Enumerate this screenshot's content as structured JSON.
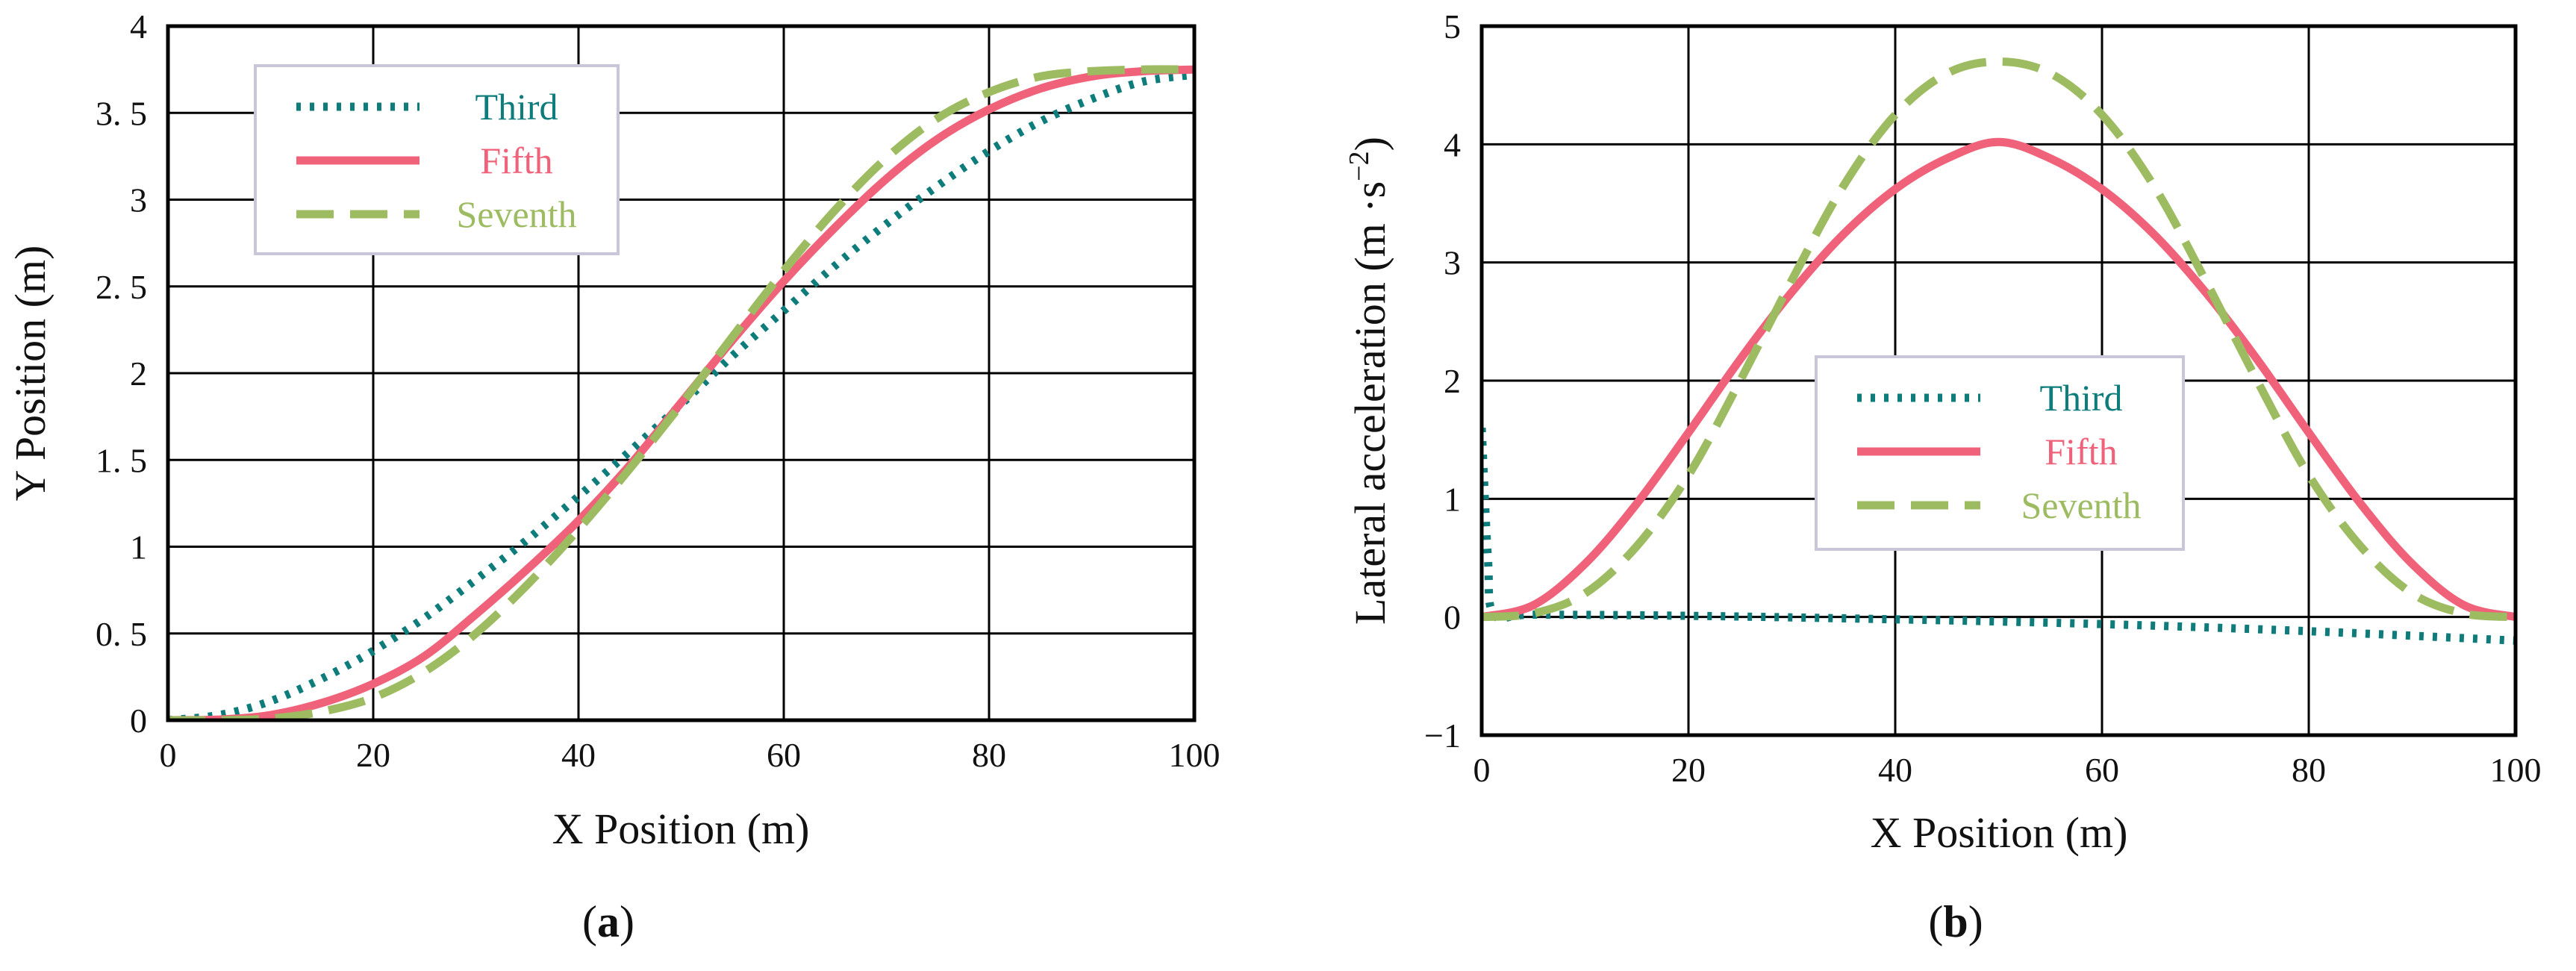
{
  "chart_data": [
    {
      "type": "line",
      "panel_label": "(a)",
      "panel_letter": "a",
      "xlabel": "X Position (m)",
      "ylabel": "Y Position (m)",
      "xlim": [
        0,
        100
      ],
      "ylim": [
        0,
        4
      ],
      "xticks": [
        0,
        20,
        40,
        60,
        80,
        100
      ],
      "yticks": [
        0,
        0.5,
        1,
        1.5,
        2,
        2.5,
        3,
        3.5,
        4
      ],
      "xtick_labels": [
        "0",
        "20",
        "40",
        "60",
        "80",
        "100"
      ],
      "ytick_labels": [
        "0",
        "0. 5",
        "1",
        "1. 5",
        "2",
        "2. 5",
        "3",
        "3. 5",
        "4"
      ],
      "grid": true,
      "legend_position": "top-left",
      "series": [
        {
          "name": "Third",
          "color": "#0e7c7b",
          "style": "dotted",
          "x": [
            0,
            5,
            10,
            15,
            20,
            25,
            30,
            35,
            40,
            45,
            50,
            55,
            60,
            65,
            70,
            75,
            80,
            85,
            90,
            95,
            100
          ],
          "y": [
            0,
            0.03,
            0.11,
            0.24,
            0.4,
            0.59,
            0.81,
            1.04,
            1.29,
            1.55,
            1.82,
            2.1,
            2.36,
            2.62,
            2.86,
            3.08,
            3.28,
            3.45,
            3.58,
            3.68,
            3.72
          ]
        },
        {
          "name": "Fifth",
          "color": "#f0617a",
          "style": "solid",
          "x": [
            0,
            5,
            10,
            15,
            20,
            25,
            30,
            35,
            40,
            45,
            50,
            55,
            60,
            65,
            70,
            75,
            80,
            85,
            90,
            95,
            100
          ],
          "y": [
            0,
            0.004,
            0.03,
            0.1,
            0.21,
            0.37,
            0.61,
            0.87,
            1.15,
            1.47,
            1.83,
            2.19,
            2.53,
            2.84,
            3.12,
            3.35,
            3.52,
            3.64,
            3.71,
            3.74,
            3.75
          ]
        },
        {
          "name": "Seventh",
          "color": "#9dbb61",
          "style": "dashed",
          "x": [
            0,
            5,
            10,
            15,
            20,
            25,
            30,
            35,
            40,
            45,
            50,
            55,
            60,
            65,
            70,
            75,
            80,
            85,
            90,
            95,
            100
          ],
          "y": [
            0,
            0.0,
            0.01,
            0.05,
            0.13,
            0.28,
            0.5,
            0.78,
            1.1,
            1.45,
            1.82,
            2.21,
            2.59,
            2.94,
            3.24,
            3.47,
            3.62,
            3.71,
            3.74,
            3.75,
            3.75
          ]
        }
      ]
    },
    {
      "type": "line",
      "panel_label": "(b)",
      "panel_letter": "b",
      "xlabel": "X Position (m)",
      "ylabel": "Lateral acceleration (m ·s",
      "ylabel_sup": "−2",
      "ylabel_end": ")",
      "xlim": [
        0,
        100
      ],
      "ylim": [
        -1,
        5
      ],
      "xticks": [
        0,
        20,
        40,
        60,
        80,
        100
      ],
      "yticks": [
        -1,
        0,
        1,
        2,
        3,
        4,
        5
      ],
      "xtick_labels": [
        "0",
        "20",
        "40",
        "60",
        "80",
        "100"
      ],
      "ytick_labels": [
        "−1",
        "0",
        "1",
        "2",
        "3",
        "4",
        "5"
      ],
      "grid": true,
      "legend_position": "center",
      "series": [
        {
          "name": "Third",
          "color": "#0e7c7b",
          "style": "dotted",
          "x": [
            0,
            0.6,
            1.2,
            5,
            20,
            40,
            60,
            80,
            100
          ],
          "y": [
            1.6,
            0.5,
            0.02,
            0.02,
            0.01,
            -0.02,
            -0.06,
            -0.12,
            -0.2
          ]
        },
        {
          "name": "Fifth",
          "color": "#f0617a",
          "style": "solid",
          "x": [
            0,
            5,
            10,
            15,
            20,
            25,
            30,
            35,
            40,
            45,
            50,
            55,
            60,
            65,
            70,
            75,
            80,
            85,
            90,
            95,
            100
          ],
          "y": [
            0,
            0.1,
            0.45,
            0.96,
            1.56,
            2.18,
            2.75,
            3.24,
            3.62,
            3.88,
            4.02,
            3.88,
            3.62,
            3.24,
            2.75,
            2.18,
            1.56,
            0.96,
            0.45,
            0.1,
            0
          ]
        },
        {
          "name": "Seventh",
          "color": "#9dbb61",
          "style": "dashed",
          "x": [
            0,
            5,
            10,
            15,
            20,
            25,
            30,
            35,
            40,
            45,
            50,
            55,
            60,
            65,
            70,
            75,
            80,
            85,
            90,
            95,
            100
          ],
          "y": [
            0,
            0.03,
            0.2,
            0.6,
            1.2,
            2.0,
            2.85,
            3.65,
            4.25,
            4.6,
            4.7,
            4.6,
            4.25,
            3.65,
            2.85,
            2.0,
            1.2,
            0.6,
            0.2,
            0.03,
            0
          ]
        }
      ]
    }
  ]
}
